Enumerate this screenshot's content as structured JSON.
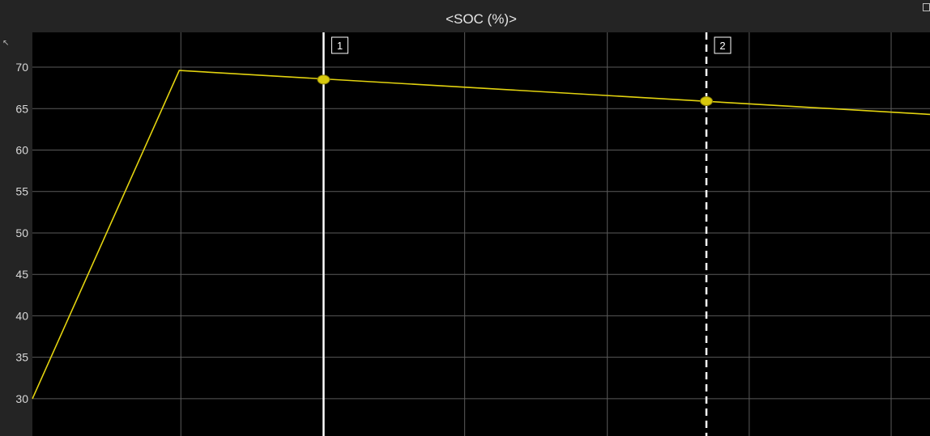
{
  "chart_data": {
    "type": "line",
    "title": "<SOC (%)>",
    "xlabel": "",
    "ylabel": "",
    "ylim": [
      25.5,
      74.2
    ],
    "xlim": [
      0,
      1
    ],
    "yticks": [
      30,
      35,
      40,
      45,
      50,
      55,
      60,
      65,
      70
    ],
    "xgrid_positions": [
      0.1654,
      0.3244,
      0.4816,
      0.6405,
      0.7986,
      0.9567
    ],
    "grid": true,
    "series": [
      {
        "color": "#e3d30f",
        "points": [
          {
            "x": 0.0,
            "y": 30.0
          },
          {
            "x": 0.1636,
            "y": 69.6
          },
          {
            "x": 1.0,
            "y": 64.3
          }
        ]
      }
    ],
    "cursors": [
      {
        "label": "1",
        "x": 0.3244,
        "y": 68.5,
        "style": "solid"
      },
      {
        "label": "2",
        "x": 0.7509,
        "y": 65.9,
        "style": "dashed"
      }
    ]
  },
  "colors": {
    "plot_background": "#000000",
    "frame_background": "#242424",
    "grid": "#5a5a5a",
    "line": "#e3d30f",
    "marker_fill": "#d7c80c",
    "cursor": "#ffffff"
  },
  "icons": {
    "corner": "restore-window-icon",
    "expand": "expand-arrow-icon"
  }
}
